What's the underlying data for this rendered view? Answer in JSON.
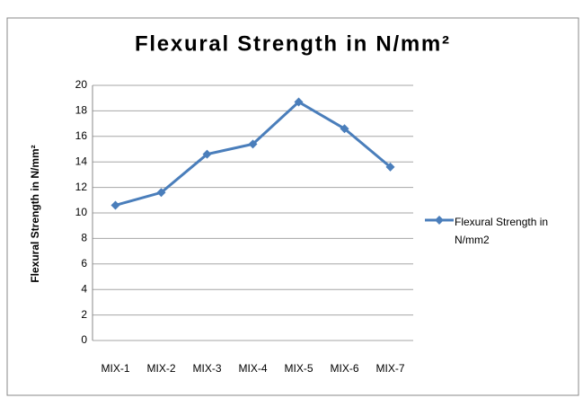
{
  "chart_data": {
    "type": "line",
    "title": "Flexural Strength in N/mm²",
    "y_label": "Flexural Strength in N/mm²",
    "categories": [
      "MIX-1",
      "MIX-2",
      "MIX-3",
      "MIX-4",
      "MIX-5",
      "MIX-6",
      "MIX-7"
    ],
    "series": [
      {
        "name": "Flexural Strength in N/mm2",
        "color": "#4a7ebb",
        "values": [
          10.6,
          11.6,
          14.6,
          15.4,
          18.7,
          16.6,
          13.6
        ]
      }
    ],
    "ylim": [
      0,
      20
    ],
    "yticks": [
      0,
      2,
      4,
      6,
      8,
      10,
      12,
      14,
      16,
      18,
      20
    ],
    "grid": true,
    "legend": "right"
  }
}
